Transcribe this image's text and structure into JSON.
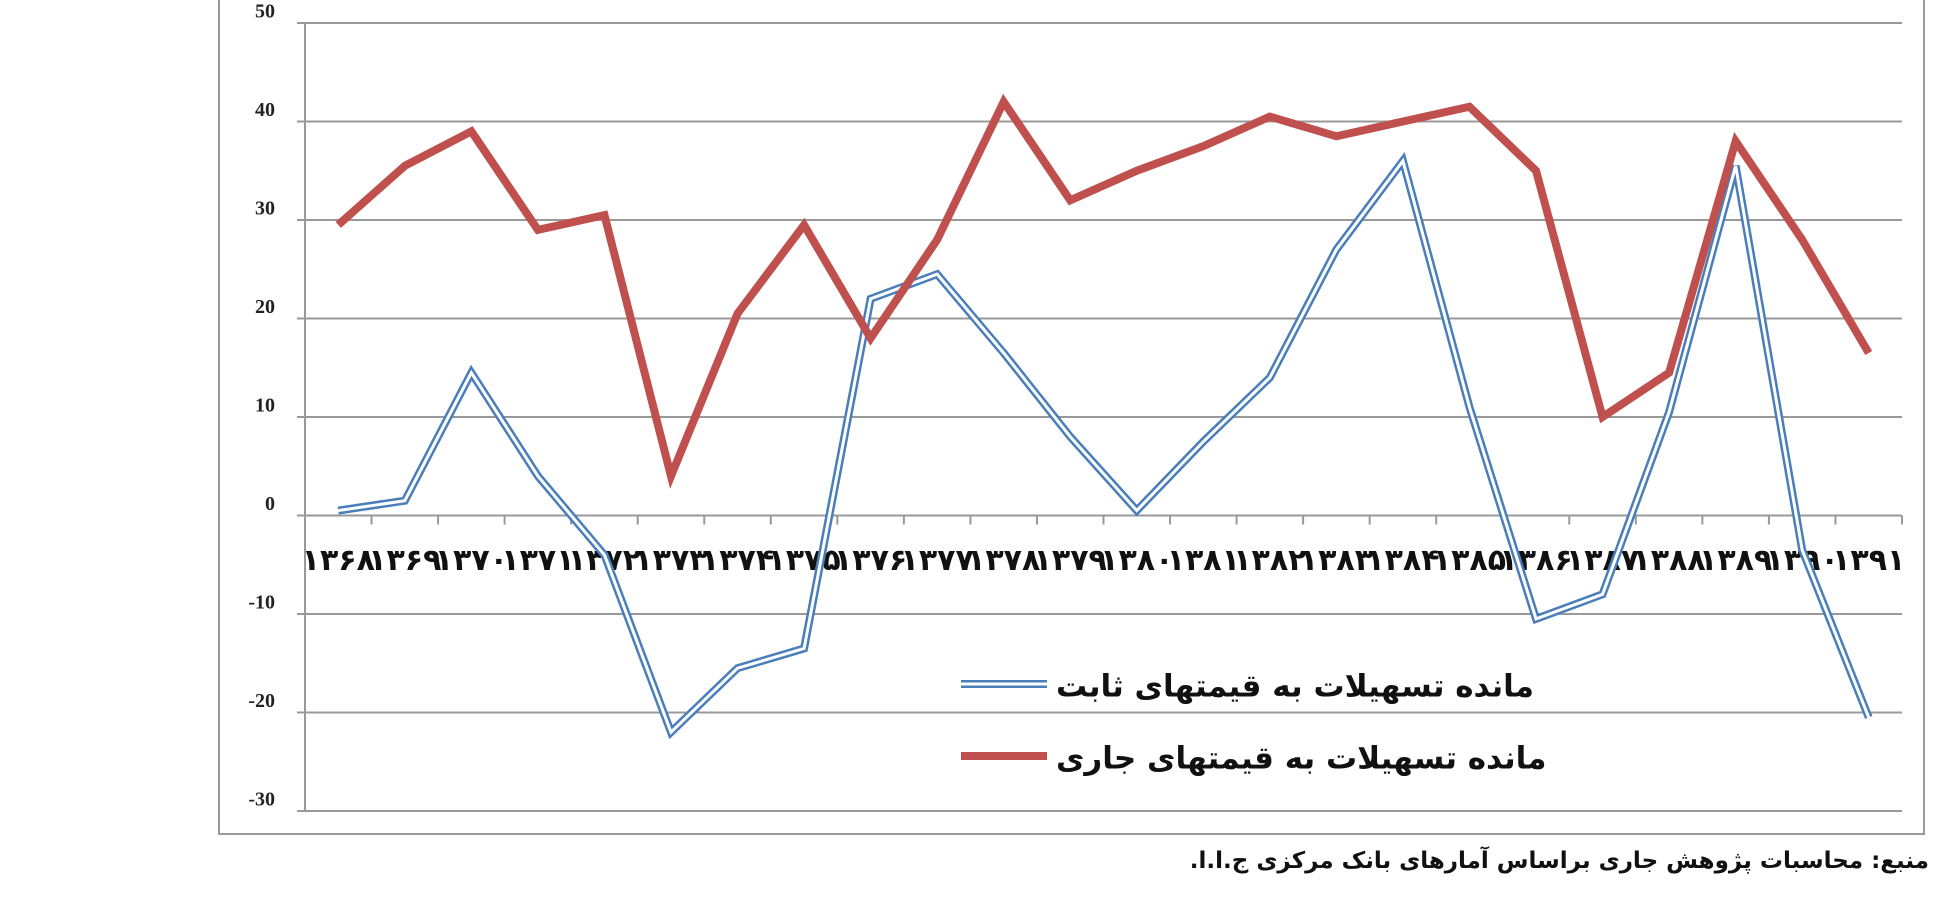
{
  "chart_data": {
    "type": "line",
    "categories": [
      "۱۳۶۸",
      "۱۳۶۹",
      "۱۳۷۰",
      "۱۳۷۱",
      "۱۳۷۲",
      "۱۳۷۳",
      "۱۳۷۴",
      "۱۳۷۵",
      "۱۳۷۶",
      "۱۳۷۷",
      "۱۳۷۸",
      "۱۳۷۹",
      "۱۳۸۰",
      "۱۳۸۱",
      "۱۳۸۲",
      "۱۳۸۳",
      "۱۳۸۴",
      "۱۳۸۵",
      "۱۳۸۶",
      "۱۳۸۷",
      "۱۳۸۸",
      "۱۳۸۹",
      "۱۳۹۰",
      "۱۳۹۱"
    ],
    "series": [
      {
        "name": "مانده تسهیلات به قیمتهای ثابت",
        "color": "#4a7ebb",
        "style": "double",
        "values": [
          0.5,
          1.5,
          14.5,
          4,
          -4,
          -22,
          -15.5,
          -13.5,
          22,
          24.5,
          16.5,
          8,
          0.5,
          7.5,
          14,
          27,
          36,
          11,
          -10.5,
          -8,
          10.5,
          35.5,
          -3.5,
          -20.5
        ]
      },
      {
        "name": "مانده تسهیلات به قیمتهای جاری",
        "color": "#c0504d",
        "style": "solid",
        "values": [
          29.5,
          35.5,
          39,
          29,
          30.5,
          4,
          20.5,
          29.5,
          18,
          28,
          42,
          32,
          35,
          37.5,
          40.5,
          38.5,
          40,
          41.5,
          35,
          10,
          14.5,
          38,
          28,
          16.5
        ]
      }
    ],
    "ylim": [
      -30,
      50
    ],
    "yticks": [
      -30,
      -20,
      -10,
      0,
      10,
      20,
      30,
      40,
      50
    ],
    "grid": true,
    "source": "منبع: محاسبات پژوهش جاری براساس آمارهای بانک مرکزی ج.ا.ا."
  }
}
